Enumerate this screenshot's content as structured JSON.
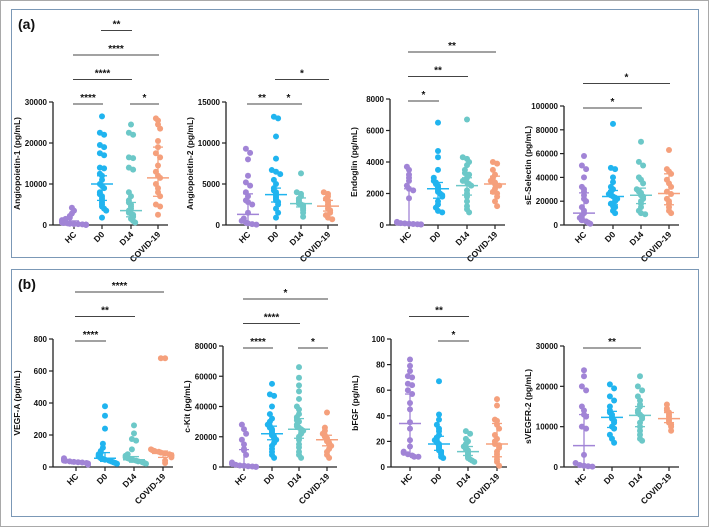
{
  "panels": [
    {
      "label": "(a)"
    },
    {
      "label": "(b)"
    }
  ],
  "colors": {
    "HC": "#a184d6",
    "D0": "#20b4ef",
    "D14": "#6cc8c8",
    "COVID-19": "#f5a07c",
    "axis": "#222222"
  },
  "chart_data": [
    {
      "type": "scatter",
      "panel": 0,
      "ylabel": "Angiopoietin-1 (pg/mL)",
      "categories": [
        "HC",
        "D0",
        "D14",
        "COVID-19"
      ],
      "ylim": [
        0,
        30000
      ],
      "yticks": [
        0,
        10000,
        20000,
        30000
      ],
      "summary": [
        {
          "median": 300,
          "q1": 100,
          "q3": 1000
        },
        {
          "median": 10000,
          "q1": 6000,
          "q3": 12000
        },
        {
          "median": 3500,
          "q1": 2000,
          "q3": 5500
        },
        {
          "median": 11500,
          "q1": 7000,
          "q3": 19000
        }
      ],
      "points": [
        [
          4200,
          3500,
          2800,
          2200,
          1800,
          1500,
          1200,
          1000,
          800,
          600,
          500,
          400,
          300,
          250,
          200,
          150,
          100,
          80,
          50,
          30,
          20
        ],
        [
          26500,
          22500,
          22000,
          19500,
          19000,
          17500,
          17000,
          14000,
          13800,
          12500,
          12000,
          11000,
          10000,
          9500,
          9000,
          8000,
          7500,
          7000,
          6500,
          6000,
          5500,
          5000,
          4500,
          4000,
          3500,
          1800
        ],
        [
          24500,
          22500,
          22000,
          16500,
          16300,
          14000,
          13500,
          8000,
          7000,
          6000,
          5500,
          5000,
          4500,
          4000,
          3500,
          3000,
          2800,
          2500,
          2000,
          1500,
          1000,
          600
        ],
        [
          26000,
          25500,
          24500,
          23500,
          20500,
          19000,
          17500,
          16500,
          14500,
          13000,
          12000,
          11500,
          10000,
          9000,
          8000,
          7000,
          5000,
          4500,
          2500
        ]
      ],
      "significance": [
        {
          "groups": [
            0,
            1
          ],
          "label": "****",
          "level": 0
        },
        {
          "groups": [
            2,
            3
          ],
          "label": "*",
          "level": 0
        },
        {
          "groups": [
            0,
            2
          ],
          "label": "****",
          "level": 1
        },
        {
          "groups": [
            0,
            3
          ],
          "label": "****",
          "level": 2
        },
        {
          "groups": [
            1,
            2
          ],
          "label": "**",
          "level": 3
        }
      ]
    },
    {
      "type": "scatter",
      "panel": 0,
      "ylabel": "Angiopoietin-2 (pg/mL)",
      "categories": [
        "HC",
        "D0",
        "D14",
        "COVID-19"
      ],
      "ylim": [
        0,
        15000
      ],
      "yticks": [
        0,
        5000,
        10000,
        15000
      ],
      "summary": [
        {
          "median": 1300,
          "q1": 300,
          "q3": 3800
        },
        {
          "median": 3700,
          "q1": 2800,
          "q3": 4500
        },
        {
          "median": 2600,
          "q1": 2200,
          "q3": 3300
        },
        {
          "median": 2300,
          "q1": 1700,
          "q3": 3000
        }
      ],
      "points": [
        [
          9300,
          8800,
          8000,
          6000,
          5200,
          4800,
          4000,
          3500,
          3000,
          2800,
          2500,
          1500,
          800,
          500,
          300,
          200,
          100,
          50
        ],
        [
          13200,
          13000,
          10800,
          8100,
          6700,
          6500,
          6200,
          5500,
          5000,
          4500,
          4200,
          4000,
          3800,
          3600,
          3400,
          3200,
          3000,
          2800,
          2500,
          2000,
          1500,
          900
        ],
        [
          6300,
          4000,
          3800,
          3500,
          3200,
          3000,
          2800,
          2600,
          2500,
          2400,
          2200,
          2000,
          1800,
          1500,
          1000
        ],
        [
          4000,
          3800,
          3500,
          3200,
          3000,
          2800,
          2500,
          2300,
          2000,
          1800,
          1500,
          1200,
          900,
          700
        ]
      ],
      "significance": [
        {
          "groups": [
            0,
            1
          ],
          "label": "**",
          "level": 0
        },
        {
          "groups": [
            1,
            2
          ],
          "label": "*",
          "level": 0
        },
        {
          "groups": [
            1,
            3
          ],
          "label": "*",
          "level": 1
        }
      ]
    },
    {
      "type": "scatter",
      "panel": 0,
      "ylabel": "Endoglin (pg/mL)",
      "categories": [
        "HC",
        "D0",
        "D14",
        "COVID-19"
      ],
      "ylim": [
        0,
        8000
      ],
      "yticks": [
        0,
        2000,
        4000,
        6000,
        8000
      ],
      "summary": [
        {
          "median": 150,
          "q1": 50,
          "q3": 2300
        },
        {
          "median": 2300,
          "q1": 1700,
          "q3": 2700
        },
        {
          "median": 2500,
          "q1": 1900,
          "q3": 3000
        },
        {
          "median": 2600,
          "q1": 2000,
          "q3": 3100
        }
      ],
      "points": [
        [
          3700,
          3500,
          3200,
          3000,
          2800,
          2500,
          2300,
          2200,
          1700,
          200,
          150,
          120,
          100,
          80,
          60,
          50,
          40,
          30
        ],
        [
          6500,
          4700,
          4300,
          3500,
          3000,
          2800,
          2700,
          2600,
          2500,
          2400,
          2300,
          2200,
          2100,
          2000,
          1900,
          1800,
          1500,
          1300,
          1100,
          900,
          800
        ],
        [
          6700,
          4300,
          4200,
          4000,
          3800,
          3500,
          3300,
          3200,
          3000,
          2800,
          2700,
          2600,
          2500,
          2200,
          2000,
          1800,
          1500,
          1200,
          1000,
          800
        ],
        [
          4000,
          3900,
          3500,
          3200,
          3000,
          2800,
          2700,
          2600,
          2500,
          2300,
          2100,
          2000,
          1800,
          1500,
          1200
        ]
      ],
      "significance": [
        {
          "groups": [
            0,
            1
          ],
          "label": "*",
          "level": 0
        },
        {
          "groups": [
            0,
            2
          ],
          "label": "**",
          "level": 1
        },
        {
          "groups": [
            0,
            3
          ],
          "label": "**",
          "level": 2
        }
      ]
    },
    {
      "type": "scatter",
      "panel": 0,
      "ylabel": "sE-Selectin (pg/mL)",
      "categories": [
        "HC",
        "D0",
        "D14",
        "COVID-19"
      ],
      "ylim": [
        0,
        100000
      ],
      "yticks": [
        0,
        20000,
        40000,
        60000,
        80000,
        100000
      ],
      "summary": [
        {
          "median": 10000,
          "q1": 3000,
          "q3": 27000
        },
        {
          "median": 24000,
          "q1": 17000,
          "q3": 29000
        },
        {
          "median": 25000,
          "q1": 18000,
          "q3": 31000
        },
        {
          "median": 26500,
          "q1": 17000,
          "q3": 43000
        }
      ],
      "points": [
        [
          58000,
          50000,
          47000,
          40000,
          32000,
          30000,
          28000,
          25000,
          22000,
          20000,
          15000,
          12000,
          10000,
          8000,
          6000,
          5000,
          4000,
          3000,
          2000,
          1000
        ],
        [
          85000,
          48000,
          47000,
          40000,
          36000,
          32000,
          30000,
          28000,
          26000,
          25000,
          24000,
          23000,
          22000,
          20000,
          18000,
          16000,
          15000,
          12000,
          10000
        ],
        [
          70000,
          53000,
          50000,
          40000,
          38000,
          35000,
          30000,
          28000,
          27000,
          25000,
          24000,
          22000,
          20000,
          18000,
          15000,
          12000,
          10000,
          9000
        ],
        [
          63000,
          47000,
          45000,
          43000,
          38000,
          35000,
          32000,
          28000,
          26000,
          22000,
          20000,
          18000,
          15000,
          12000,
          10000
        ]
      ],
      "significance": [
        {
          "groups": [
            0,
            2
          ],
          "label": "*",
          "level": 0
        },
        {
          "groups": [
            0,
            3
          ],
          "label": "*",
          "level": 1
        }
      ]
    },
    {
      "type": "scatter",
      "panel": 1,
      "ylabel": "VEGF-A (pg/mL)",
      "categories": [
        "HC",
        "D0",
        "D14",
        "COVID-19"
      ],
      "ylim": [
        0,
        800
      ],
      "yticks": [
        0,
        200,
        400,
        600,
        800
      ],
      "summary": [
        {
          "median": 30,
          "q1": 20,
          "q3": 40
        },
        {
          "median": 55,
          "q1": 35,
          "q3": 90
        },
        {
          "median": 45,
          "q1": 30,
          "q3": 65
        },
        {
          "median": 85,
          "q1": 60,
          "q3": 100
        }
      ],
      "points": [
        [
          55,
          50,
          45,
          40,
          38,
          35,
          32,
          30,
          28,
          25,
          22,
          20,
          18,
          15
        ],
        [
          380,
          320,
          240,
          145,
          120,
          100,
          90,
          80,
          70,
          65,
          60,
          55,
          50,
          45,
          40,
          35,
          30,
          25,
          20
        ],
        [
          260,
          210,
          175,
          165,
          110,
          80,
          70,
          60,
          55,
          50,
          45,
          40,
          35,
          30,
          25,
          20
        ],
        [
          680,
          680,
          110,
          105,
          100,
          95,
          90,
          85,
          80,
          75,
          70,
          60,
          40,
          25
        ]
      ],
      "significance": [
        {
          "groups": [
            0,
            1
          ],
          "label": "****",
          "level": 0
        },
        {
          "groups": [
            0,
            2
          ],
          "label": "**",
          "level": 1
        },
        {
          "groups": [
            0,
            3
          ],
          "label": "****",
          "level": 2
        }
      ]
    },
    {
      "type": "scatter",
      "panel": 1,
      "ylabel": "c-Kit (pg/mL)",
      "categories": [
        "HC",
        "D0",
        "D14",
        "COVID-19"
      ],
      "ylim": [
        0,
        80000
      ],
      "yticks": [
        0,
        20000,
        40000,
        60000,
        80000
      ],
      "summary": [
        {
          "median": 1000,
          "q1": 200,
          "q3": 11500
        },
        {
          "median": 22000,
          "q1": 18000,
          "q3": 27000
        },
        {
          "median": 25000,
          "q1": 19000,
          "q3": 32000
        },
        {
          "median": 18000,
          "q1": 14000,
          "q3": 21000
        }
      ],
      "points": [
        [
          28000,
          25000,
          22000,
          18000,
          15000,
          12000,
          11000,
          8000,
          3000,
          2000,
          1500,
          1000,
          800,
          500,
          300,
          200,
          100
        ],
        [
          55000,
          48000,
          47000,
          40000,
          35000,
          32000,
          30000,
          28000,
          27000,
          26000,
          25000,
          24000,
          23000,
          22000,
          21000,
          20000,
          19000,
          18000,
          16000,
          14000,
          12000,
          10000,
          8000,
          6000
        ],
        [
          66000,
          59000,
          54000,
          50000,
          45000,
          40000,
          38000,
          35000,
          33000,
          31000,
          30000,
          28000,
          27000,
          26000,
          25000,
          24000,
          22000,
          20000,
          18000,
          15000,
          13000,
          10000,
          8000,
          6000
        ],
        [
          36000,
          26000,
          24000,
          22000,
          21000,
          20000,
          19000,
          18000,
          17000,
          16000,
          15000,
          14000,
          12000,
          10000,
          8000,
          6000
        ]
      ],
      "significance": [
        {
          "groups": [
            0,
            1
          ],
          "label": "****",
          "level": 0
        },
        {
          "groups": [
            2,
            3
          ],
          "label": "*",
          "level": 0
        },
        {
          "groups": [
            0,
            2
          ],
          "label": "****",
          "level": 1
        },
        {
          "groups": [
            0,
            3
          ],
          "label": "*",
          "level": 2
        }
      ]
    },
    {
      "type": "scatter",
      "panel": 1,
      "ylabel": "bFGF (pg/mL)",
      "categories": [
        "HC",
        "D0",
        "D14",
        "COVID-19"
      ],
      "ylim": [
        0,
        100
      ],
      "yticks": [
        0,
        20,
        40,
        60,
        80,
        100
      ],
      "summary": [
        {
          "median": 34,
          "q1": 10,
          "q3": 57
        },
        {
          "median": 18,
          "q1": 13,
          "q3": 24
        },
        {
          "median": 12,
          "q1": 9,
          "q3": 16
        },
        {
          "median": 18,
          "q1": 8,
          "q3": 34
        }
      ],
      "points": [
        [
          84,
          79,
          75,
          71,
          70,
          65,
          64,
          60,
          57,
          50,
          45,
          35,
          30,
          21,
          16,
          12,
          11,
          10,
          9,
          8,
          8
        ],
        [
          67,
          41,
          37,
          33,
          30,
          28,
          25,
          23,
          21,
          20,
          19,
          18,
          17,
          16,
          15,
          14,
          13,
          12,
          11,
          10,
          8,
          7
        ],
        [
          28,
          26,
          22,
          20,
          18,
          16,
          15,
          14,
          13,
          12,
          11,
          10,
          9,
          8,
          7,
          6,
          5,
          4
        ],
        [
          53,
          48,
          37,
          36,
          33,
          30,
          25,
          22,
          20,
          18,
          17,
          15,
          12,
          10,
          8,
          6,
          4,
          1
        ]
      ],
      "significance": [
        {
          "groups": [
            1,
            2
          ],
          "label": "*",
          "level": 0
        },
        {
          "groups": [
            0,
            2
          ],
          "label": "**",
          "level": 1
        }
      ]
    },
    {
      "type": "scatter",
      "panel": 1,
      "ylabel": "sVEGFR-2 (pg/mL)",
      "categories": [
        "HC",
        "D0",
        "D14",
        "COVID-19"
      ],
      "ylim": [
        0,
        30000
      ],
      "yticks": [
        0,
        10000,
        20000,
        30000
      ],
      "summary": [
        {
          "median": 5300,
          "q1": 200,
          "q3": 13000
        },
        {
          "median": 12300,
          "q1": 9800,
          "q3": 13800
        },
        {
          "median": 12800,
          "q1": 10000,
          "q3": 15000
        },
        {
          "median": 12000,
          "q1": 11000,
          "q3": 13500
        }
      ],
      "points": [
        [
          24000,
          22500,
          20000,
          19000,
          15000,
          14000,
          13000,
          12500,
          10000,
          9500,
          3000,
          1000,
          500,
          300,
          200,
          100
        ],
        [
          20500,
          19500,
          17500,
          16500,
          15000,
          14000,
          13500,
          13000,
          12500,
          12000,
          11500,
          11000,
          10000,
          9500,
          8000,
          7000,
          6000
        ],
        [
          22500,
          20000,
          19000,
          17500,
          16500,
          15500,
          15000,
          14000,
          13500,
          13000,
          12500,
          12000,
          11000,
          10000,
          9000,
          8000,
          7000,
          6500
        ],
        [
          15500,
          14500,
          14000,
          13500,
          13000,
          12500,
          12000,
          11500,
          11000,
          10500,
          10000,
          9000
        ]
      ],
      "significance": [
        {
          "groups": [
            0,
            2
          ],
          "label": "**",
          "level": 0
        }
      ]
    }
  ]
}
